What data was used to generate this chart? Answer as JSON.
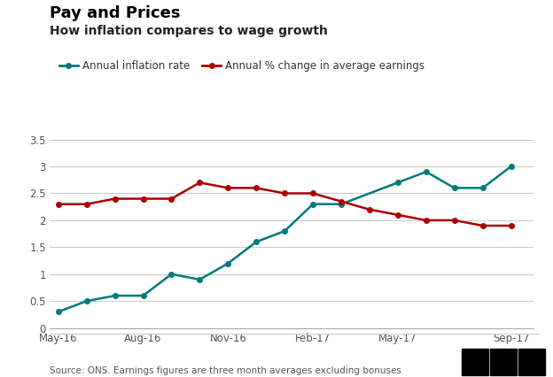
{
  "title": "Pay and Prices",
  "subtitle": "How inflation compares to wage growth",
  "source_text": "Source: ONS. Earnings figures are three month averages excluding bonuses",
  "inflation_label": "Annual inflation rate",
  "earnings_label": "Annual % change in average earnings",
  "inflation_color": "#007a7a",
  "earnings_color": "#aa0000",
  "x_labels": [
    "May-16",
    "Aug-16",
    "Nov-16",
    "Feb-17",
    "May-17",
    "Sep-17"
  ],
  "xtick_positions": [
    0,
    3,
    6,
    9,
    12,
    16
  ],
  "inflation_x": [
    0,
    1,
    2,
    3,
    4,
    5,
    6,
    7,
    8,
    9,
    10,
    12,
    13,
    14,
    15,
    16
  ],
  "inflation_y": [
    0.3,
    0.5,
    0.6,
    0.6,
    1.0,
    0.9,
    1.2,
    1.6,
    1.8,
    2.3,
    2.3,
    2.7,
    2.9,
    2.6,
    2.6,
    3.0
  ],
  "earnings_x": [
    0,
    1,
    2,
    3,
    4,
    5,
    6,
    7,
    8,
    9,
    10,
    11,
    12,
    13,
    14,
    15,
    16
  ],
  "earnings_y": [
    2.3,
    2.3,
    2.4,
    2.4,
    2.4,
    2.7,
    2.6,
    2.6,
    2.5,
    2.5,
    2.35,
    2.2,
    2.1,
    2.0,
    2.0,
    1.9,
    1.9
  ],
  "ylim": [
    0,
    3.5
  ],
  "yticks": [
    0,
    0.5,
    1.0,
    1.5,
    2.0,
    2.5,
    3.0,
    3.5
  ],
  "xlim": [
    -0.3,
    16.8
  ],
  "background_color": "#ffffff",
  "grid_color": "#cccccc",
  "title_fontsize": 13,
  "subtitle_fontsize": 10,
  "legend_fontsize": 8.5,
  "tick_fontsize": 8.5,
  "source_fontsize": 7.5,
  "line_width": 1.8,
  "marker_size": 4.0
}
